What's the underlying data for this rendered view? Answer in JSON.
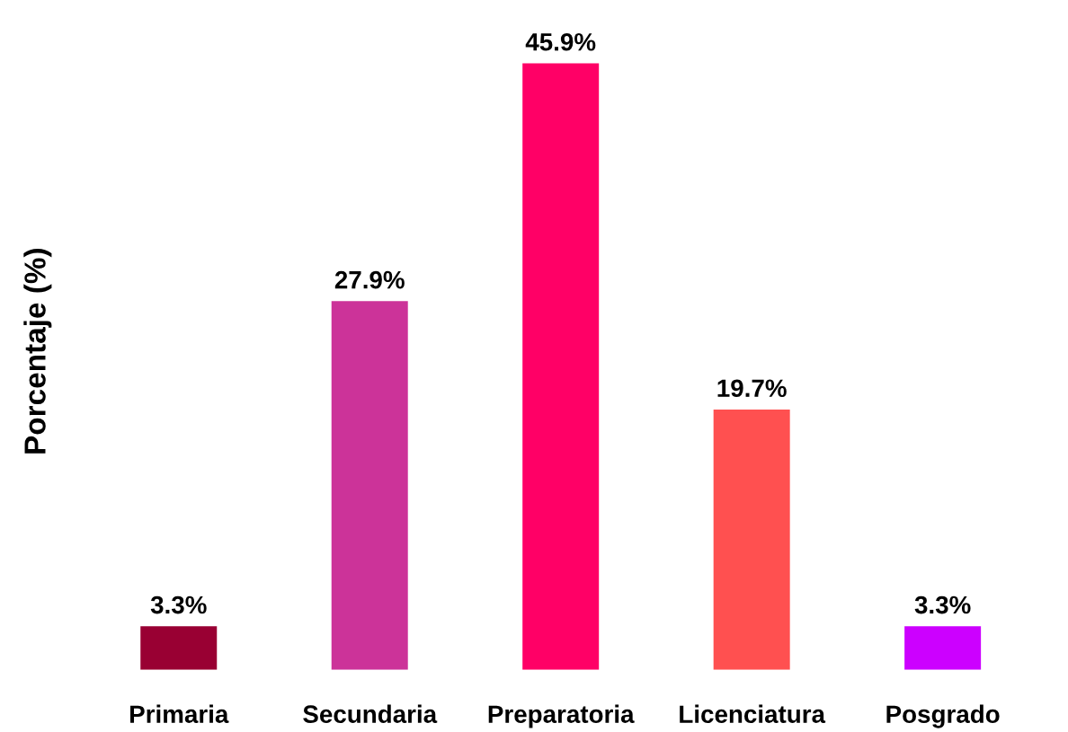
{
  "chart_data": {
    "type": "bar",
    "ylabel": "Porcentaje (%)",
    "categories": [
      "Primaria",
      "Secundaria",
      "Preparatoria",
      "Licenciatura",
      "Posgrado"
    ],
    "values": [
      3.3,
      27.9,
      45.9,
      19.7,
      3.3
    ],
    "colors": [
      "#990033",
      "#cc3399",
      "#ff0066",
      "#ff5050",
      "#cc00ff"
    ],
    "value_labels": [
      "3.3%",
      "27.9%",
      "45.9%",
      "19.7%",
      "3.3%"
    ],
    "grid": false
  }
}
